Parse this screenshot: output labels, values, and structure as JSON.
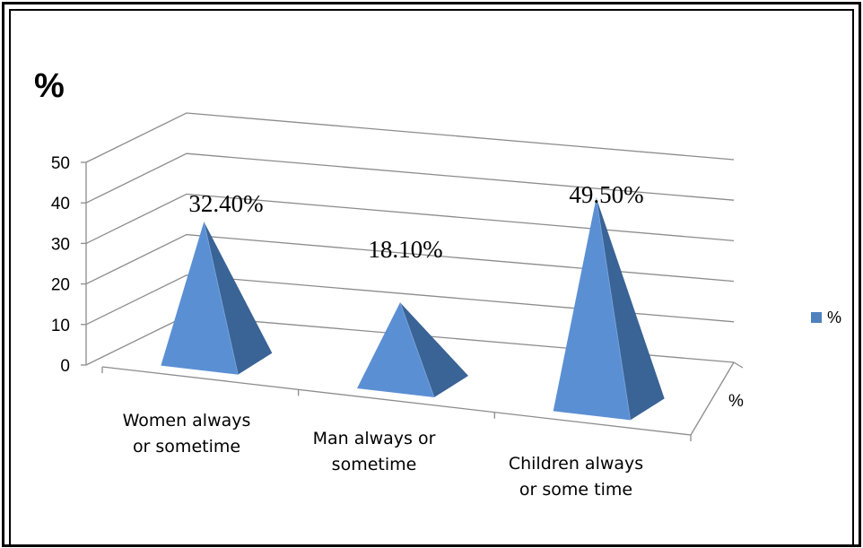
{
  "chart_data": {
    "type": "bar",
    "style": "3d-pyramid",
    "title": "%",
    "categories": [
      "Women always or sometime",
      "Man always or sometime",
      "Children always or some time"
    ],
    "category_lines": [
      [
        "Women always",
        "or sometime"
      ],
      [
        "Man always or",
        "sometime"
      ],
      [
        "Children always",
        "or some time"
      ]
    ],
    "series": [
      {
        "name": "%",
        "values": [
          32.4,
          18.1,
          49.5
        ],
        "color": "#4f81bd"
      }
    ],
    "data_labels": [
      "32.40%",
      "18.10%",
      "49.50%"
    ],
    "yticks": [
      "0",
      "10",
      "20",
      "30",
      "40",
      "50"
    ],
    "ylim": [
      0,
      50
    ],
    "depth_axis_label": "%",
    "legend": {
      "position": "right",
      "entries": [
        "%"
      ]
    },
    "grid": true
  }
}
